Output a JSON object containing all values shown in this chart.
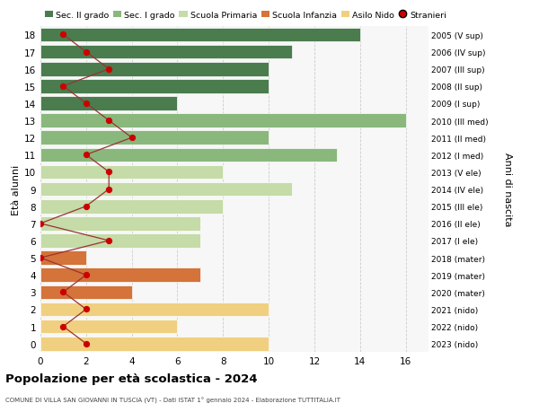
{
  "ages": [
    18,
    17,
    16,
    15,
    14,
    13,
    12,
    11,
    10,
    9,
    8,
    7,
    6,
    5,
    4,
    3,
    2,
    1,
    0
  ],
  "anni_nascita": [
    "2005 (V sup)",
    "2006 (IV sup)",
    "2007 (III sup)",
    "2008 (II sup)",
    "2009 (I sup)",
    "2010 (III med)",
    "2011 (II med)",
    "2012 (I med)",
    "2013 (V ele)",
    "2014 (IV ele)",
    "2015 (III ele)",
    "2016 (II ele)",
    "2017 (I ele)",
    "2018 (mater)",
    "2019 (mater)",
    "2020 (mater)",
    "2021 (nido)",
    "2022 (nido)",
    "2023 (nido)"
  ],
  "bar_values": [
    14,
    11,
    10,
    10,
    6,
    16,
    10,
    13,
    8,
    11,
    8,
    7,
    7,
    2,
    7,
    4,
    10,
    6,
    10
  ],
  "bar_colors": [
    "#4a7c4e",
    "#4a7c4e",
    "#4a7c4e",
    "#4a7c4e",
    "#4a7c4e",
    "#8ab87c",
    "#8ab87c",
    "#8ab87c",
    "#c5dba8",
    "#c5dba8",
    "#c5dba8",
    "#c5dba8",
    "#c5dba8",
    "#d4733a",
    "#d4733a",
    "#d4733a",
    "#f0d080",
    "#f0d080",
    "#f0d080"
  ],
  "stranieri": [
    1,
    2,
    3,
    1,
    2,
    3,
    4,
    2,
    3,
    3,
    2,
    0,
    3,
    0,
    2,
    1,
    2,
    1,
    2
  ],
  "legend_labels": [
    "Sec. II grado",
    "Sec. I grado",
    "Scuola Primaria",
    "Scuola Infanzia",
    "Asilo Nido",
    "Stranieri"
  ],
  "legend_colors": [
    "#4a7c4e",
    "#8ab87c",
    "#c5dba8",
    "#d4733a",
    "#f0d080",
    "#cc0000"
  ],
  "title": "Popolazione per età scolastica - 2024",
  "subtitle": "COMUNE DI VILLA SAN GIOVANNI IN TUSCIA (VT) - Dati ISTAT 1° gennaio 2024 - Elaborazione TUTTITALIA.IT",
  "ylabel_left": "Età alunni",
  "ylabel_right": "Anni di nascita",
  "xlim": [
    0,
    17
  ],
  "xticks": [
    0,
    2,
    4,
    6,
    8,
    10,
    12,
    14,
    16
  ],
  "bg_color": "#ffffff",
  "plot_bg": "#f7f7f7",
  "grid_color": "#cccccc",
  "stranieri_line_color": "#993333",
  "stranieri_dot_color": "#cc0000",
  "bar_height": 0.82
}
